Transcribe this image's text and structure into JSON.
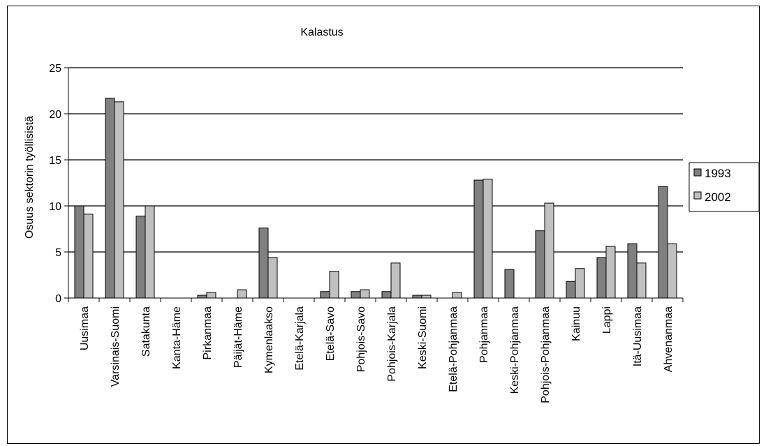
{
  "chart_data": {
    "type": "bar",
    "title": "Kalastus",
    "xlabel": "",
    "ylabel": "Osuus sektorin työllisistä",
    "ylim": [
      0,
      25
    ],
    "yticks": [
      0,
      5,
      10,
      15,
      20,
      25
    ],
    "grid": true,
    "legend_position": "right",
    "categories": [
      "Uusimaa",
      "Varsinais-Suomi",
      "Satakunta",
      "Kanta-Häme",
      "Pirkanmaa",
      "Päijät-Häme",
      "Kymenlaakso",
      "Etelä-Karjala",
      "Etelä-Savo",
      "Pohjois-Savo",
      "Pohjois-Karjala",
      "Keski-Suomi",
      "Etelä-Pohjanmaa",
      "Pohjanmaa",
      "Keski-Pohjanmaa",
      "Pohjois-Pohjanmaa",
      "Kainuu",
      "Lappi",
      "Itä-Uusimaa",
      "Ahvenanmaa"
    ],
    "series": [
      {
        "name": "1993",
        "color": "#808080",
        "values": [
          10.0,
          21.7,
          8.9,
          0,
          0.3,
          0,
          7.6,
          0,
          0.7,
          0.7,
          0.7,
          0.3,
          0,
          12.8,
          3.1,
          7.3,
          1.8,
          4.4,
          5.9,
          12.1
        ]
      },
      {
        "name": "2002",
        "color": "#c0c0c0",
        "values": [
          9.1,
          21.3,
          10.0,
          0,
          0.6,
          0.9,
          4.4,
          0,
          2.9,
          0.9,
          3.8,
          0.3,
          0.6,
          12.9,
          0,
          10.3,
          3.2,
          5.6,
          3.8,
          5.9
        ]
      }
    ]
  }
}
